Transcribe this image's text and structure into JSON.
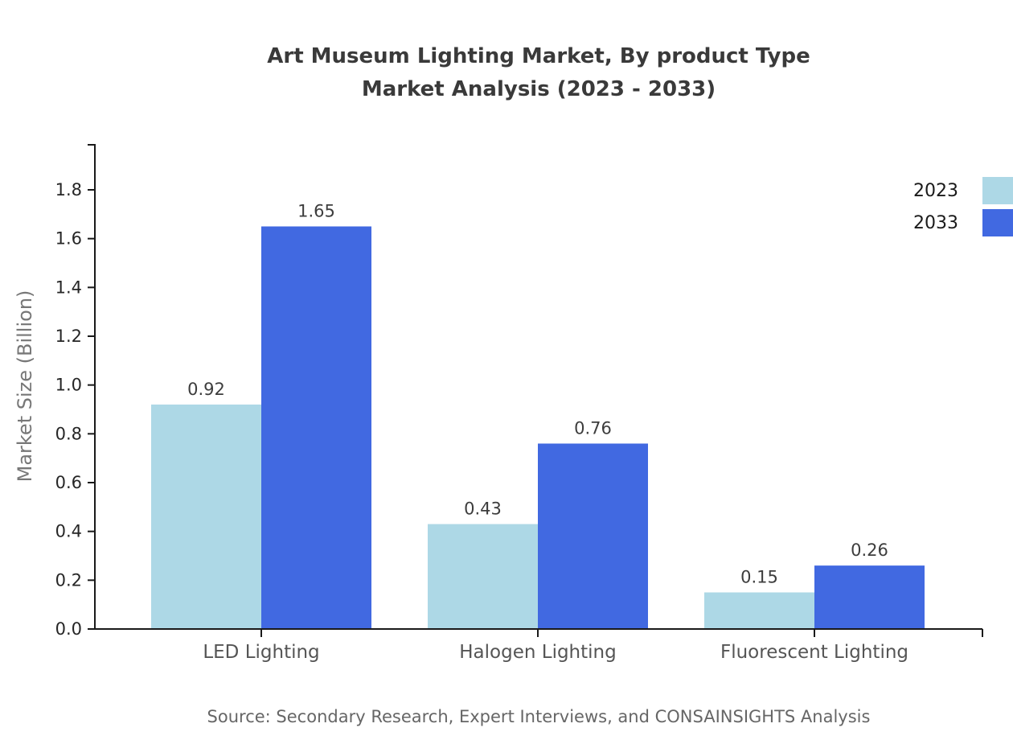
{
  "page": {
    "background_color": "#ffffff"
  },
  "chart_data": {
    "type": "bar",
    "title": "Art Museum Lighting Market, By product Type Market Analysis (2023 - 2033)",
    "title_lines": [
      "Art Museum Lighting Market, By product Type",
      "Market Analysis (2023 - 2033)"
    ],
    "xlabel": "",
    "ylabel": "Market Size (Billion)",
    "categories": [
      "LED Lighting",
      "Halogen Lighting",
      "Fluorescent Lighting"
    ],
    "series": [
      {
        "name": "2023",
        "color": "#ADD8E6",
        "values": [
          0.92,
          0.43,
          0.15
        ]
      },
      {
        "name": "2033",
        "color": "#4169E1",
        "values": [
          1.65,
          0.76,
          0.26
        ]
      }
    ],
    "ylim": [
      0.0,
      1.9
    ],
    "yticks": [
      0.0,
      0.2,
      0.4,
      0.6,
      0.8,
      1.0,
      1.2,
      1.4,
      1.6,
      1.8
    ],
    "grid": false,
    "legend_position": "top-right",
    "bar_value_labels": true,
    "colors": {
      "axis": "#1a1a1a",
      "tick_label": "#262626",
      "category_label": "#555555",
      "value_label": "#3d3d3d",
      "title": "#3a3a3a",
      "y_axis_label": "#777777",
      "source": "#666666"
    },
    "source": "Source: Secondary Research, Expert Interviews, and CONSAINSIGHTS Analysis"
  }
}
